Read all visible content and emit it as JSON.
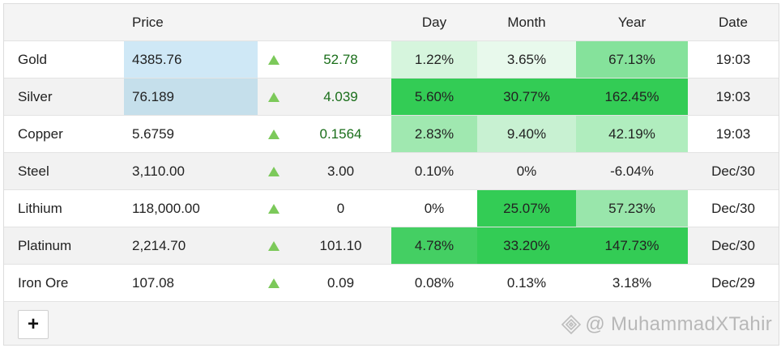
{
  "header": {
    "price": "Price",
    "day": "Day",
    "month": "Month",
    "year": "Year",
    "date": "Date"
  },
  "rows": [
    {
      "name": "Gold",
      "price": "4385.76",
      "change": "52.78",
      "day": "1.22%",
      "month": "3.65%",
      "year": "67.13%",
      "date": "19:03",
      "direction": "up"
    },
    {
      "name": "Silver",
      "price": "76.189",
      "change": "4.039",
      "day": "5.60%",
      "month": "30.77%",
      "year": "162.45%",
      "date": "19:03",
      "direction": "up"
    },
    {
      "name": "Copper",
      "price": "5.6759",
      "change": "0.1564",
      "day": "2.83%",
      "month": "9.40%",
      "year": "42.19%",
      "date": "19:03",
      "direction": "up"
    },
    {
      "name": "Steel",
      "price": "3,110.00",
      "change": "3.00",
      "day": "0.10%",
      "month": "0%",
      "year": "-6.04%",
      "date": "Dec/30",
      "direction": "up"
    },
    {
      "name": "Lithium",
      "price": "118,000.00",
      "change": "0",
      "day": "0%",
      "month": "25.07%",
      "year": "57.23%",
      "date": "Dec/30",
      "direction": "up"
    },
    {
      "name": "Platinum",
      "price": "2,214.70",
      "change": "101.10",
      "day": "4.78%",
      "month": "33.20%",
      "year": "147.73%",
      "date": "Dec/30",
      "direction": "up"
    },
    {
      "name": "Iron Ore",
      "price": "107.08",
      "change": "0.09",
      "day": "0.08%",
      "month": "0.13%",
      "year": "3.18%",
      "date": "Dec/29",
      "direction": "up"
    }
  ],
  "colors": {
    "up_arrow": "#7cc95a",
    "gold_price_bg": "#cfe8f6",
    "silver_price_bg": "#c5dfeb",
    "gold_day_bg": "#d6f5dd",
    "gold_month_bg": "#e8f9ec",
    "gold_year_bg": "#85e29b",
    "silver_day_bg": "#33cc55",
    "silver_month_bg": "#33cc55",
    "silver_year_bg": "#33cc55",
    "copper_day_bg": "#a0e8b0",
    "copper_month_bg": "#c8f1d2",
    "copper_year_bg": "#b0edbe",
    "lithium_month_bg": "#33cc55",
    "lithium_year_bg": "#99e6ab",
    "platinum_day_bg": "#44cf63",
    "platinum_month_bg": "#33cc55",
    "platinum_year_bg": "#33cc55"
  },
  "footer": {
    "add_label": "+",
    "watermark": "@ MuhammadXTahir",
    "watermark_icon": "diamond-logo-icon"
  }
}
